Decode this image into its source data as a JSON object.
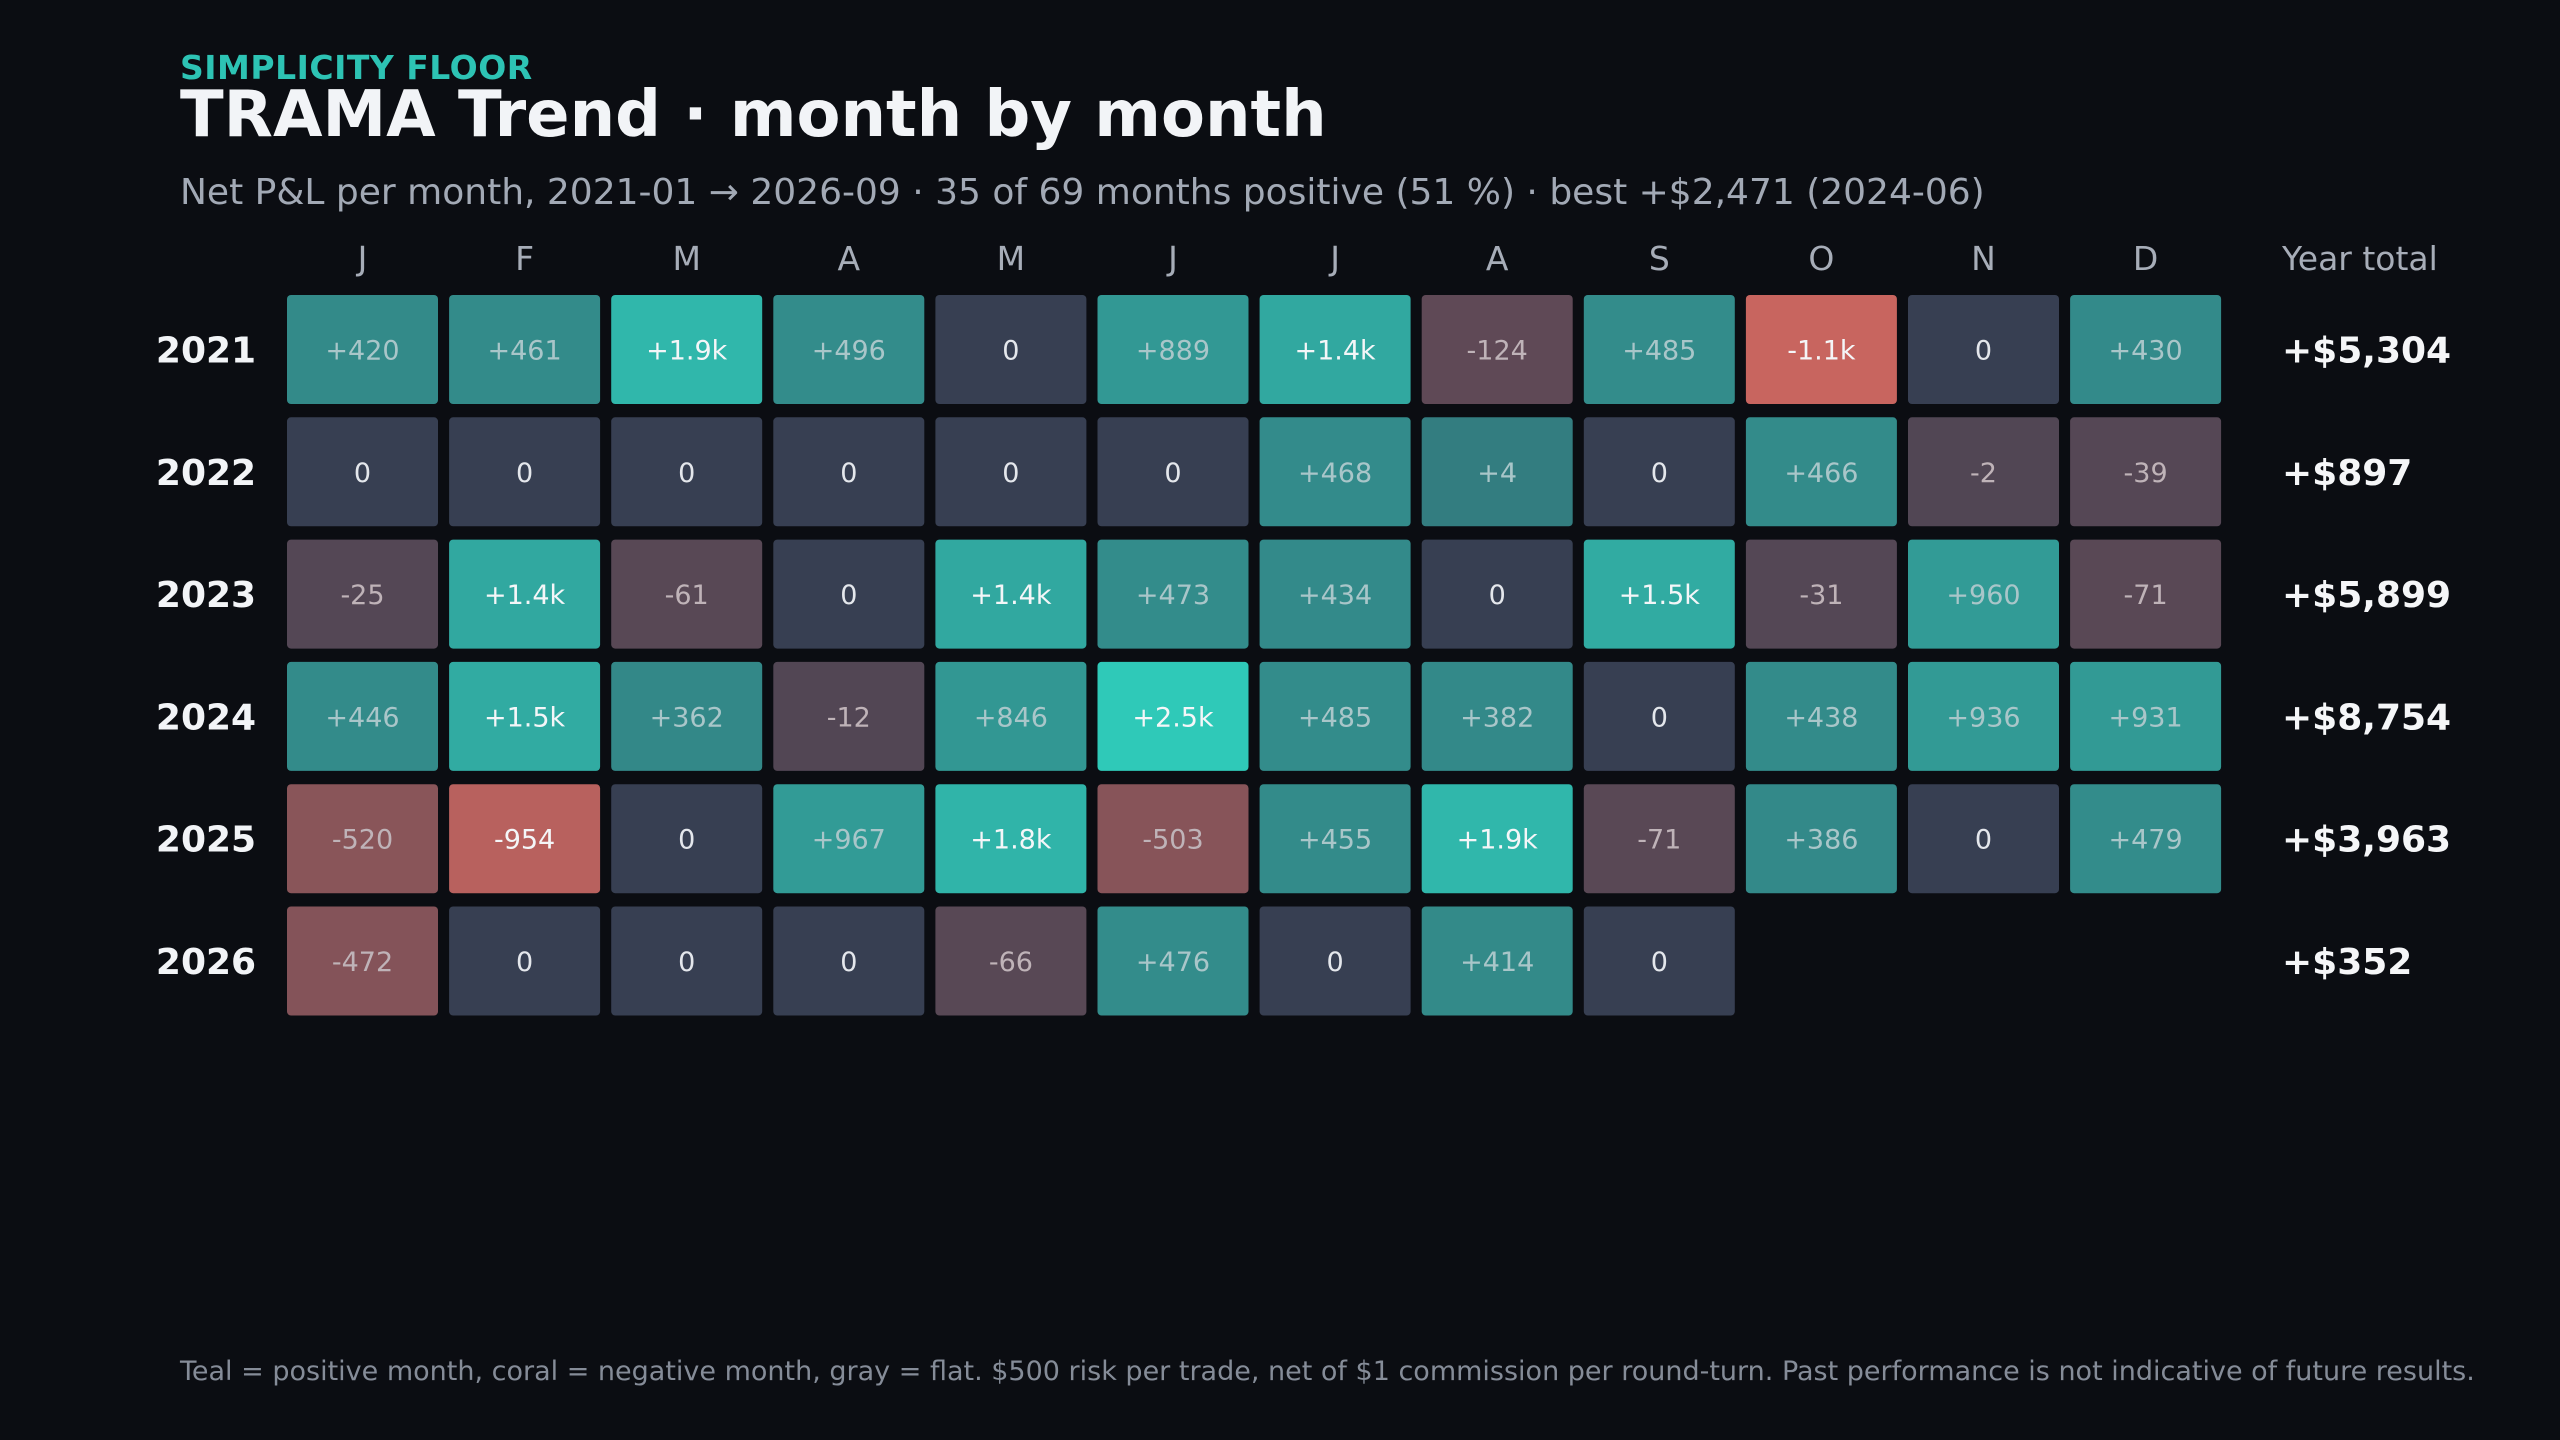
{
  "header": {
    "eyebrow": "SIMPLICITY FLOOR",
    "title": "TRAMA Trend · month by month",
    "subtitle": "Net P&L per month, 2021-01 → 2026-09 · 35 of 69 months positive (51 %) · best +$2,471 (2024-06)"
  },
  "footnote": "Teal = positive month, coral = negative month, gray = flat. $500 risk per trade, net of $1 commission per round-turn. Past performance is not indicative of future results.",
  "colors": {
    "background": "#0b0d12",
    "positive": "#2fc9b8",
    "negative": "#c8655f",
    "flat": "#373f52",
    "eyebrow": "#2dc3b4"
  },
  "chart_data": {
    "type": "heatmap",
    "months": [
      "J",
      "F",
      "M",
      "A",
      "M",
      "J",
      "J",
      "A",
      "S",
      "O",
      "N",
      "D"
    ],
    "totals_header": "Year total",
    "rows": [
      {
        "year": "2021",
        "labels": [
          "+420",
          "+461",
          "+1.9k",
          "+496",
          "0",
          "+889",
          "+1.4k",
          "-124",
          "+485",
          "-1.1k",
          "0",
          "+430"
        ],
        "values": [
          420,
          461,
          1900,
          496,
          0,
          889,
          1400,
          -124,
          485,
          -1100,
          0,
          430
        ],
        "total": "+$5,304"
      },
      {
        "year": "2022",
        "labels": [
          "0",
          "0",
          "0",
          "0",
          "0",
          "0",
          "+468",
          "+4",
          "0",
          "+466",
          "-2",
          "-39"
        ],
        "values": [
          0,
          0,
          0,
          0,
          0,
          0,
          468,
          4,
          0,
          466,
          -2,
          -39
        ],
        "total": "+$897"
      },
      {
        "year": "2023",
        "labels": [
          "-25",
          "+1.4k",
          "-61",
          "0",
          "+1.4k",
          "+473",
          "+434",
          "0",
          "+1.5k",
          "-31",
          "+960",
          "-71"
        ],
        "values": [
          -25,
          1400,
          -61,
          0,
          1400,
          473,
          434,
          0,
          1500,
          -31,
          960,
          -71
        ],
        "total": "+$5,899"
      },
      {
        "year": "2024",
        "labels": [
          "+446",
          "+1.5k",
          "+362",
          "-12",
          "+846",
          "+2.5k",
          "+485",
          "+382",
          "0",
          "+438",
          "+936",
          "+931"
        ],
        "values": [
          446,
          1500,
          362,
          -12,
          846,
          2471,
          485,
          382,
          0,
          438,
          936,
          931
        ],
        "total": "+$8,754"
      },
      {
        "year": "2025",
        "labels": [
          "-520",
          "-954",
          "0",
          "+967",
          "+1.8k",
          "-503",
          "+455",
          "+1.9k",
          "-71",
          "+386",
          "0",
          "+479"
        ],
        "values": [
          -520,
          -954,
          0,
          967,
          1800,
          -503,
          455,
          1900,
          -71,
          386,
          0,
          479
        ],
        "total": "+$3,963"
      },
      {
        "year": "2026",
        "labels": [
          "-472",
          "0",
          "0",
          "0",
          "-66",
          "+476",
          "0",
          "+414",
          "0"
        ],
        "values": [
          -472,
          0,
          0,
          0,
          -66,
          476,
          0,
          414,
          0
        ],
        "total": "+$352"
      }
    ]
  }
}
